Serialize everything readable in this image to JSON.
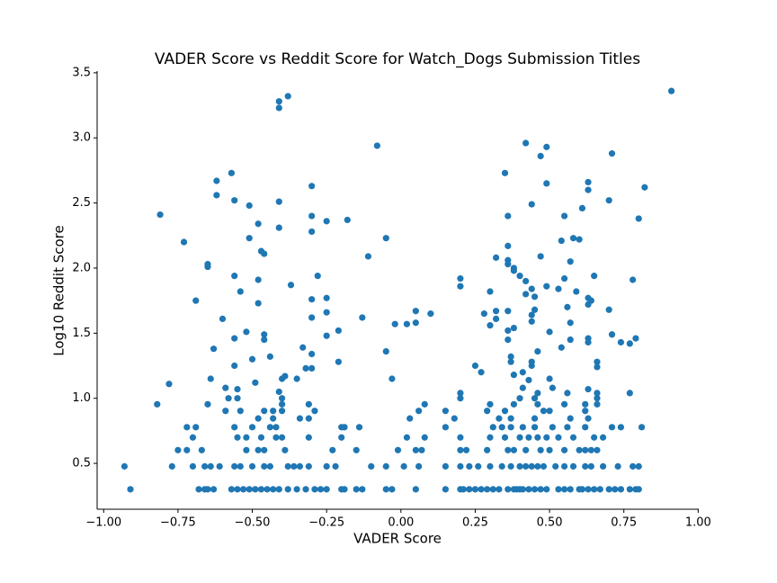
{
  "chart_data": {
    "type": "scatter",
    "title": "VADER Score vs Reddit Score for Watch_Dogs Submission Titles",
    "xlabel": "VADER Score",
    "ylabel": "Log10 Reddit Score",
    "color": "#1f77b4",
    "xlim": [
      -1.022,
      1.002
    ],
    "ylim": [
      0.148,
      3.513
    ],
    "xticks": [
      {
        "value": -1,
        "label": "−1.00"
      },
      {
        "value": -0.75,
        "label": "−0.75"
      },
      {
        "value": -0.5,
        "label": "−0.50"
      },
      {
        "value": -0.25,
        "label": "−0.25"
      },
      {
        "value": 0,
        "label": "0.00"
      },
      {
        "value": 0.25,
        "label": "0.25"
      },
      {
        "value": 0.5,
        "label": "0.50"
      },
      {
        "value": 0.75,
        "label": "0.75"
      },
      {
        "value": 1,
        "label": "1.00"
      }
    ],
    "yticks": [
      0.5,
      {
        "value": 1,
        "label": "1.0"
      },
      1.5,
      {
        "value": 2,
        "label": "2.0"
      },
      2.5,
      {
        "value": 3,
        "label": "3.0"
      },
      3.5
    ],
    "x": [
      -0.91,
      -0.68,
      -0.66,
      -0.65,
      -0.63,
      -0.57,
      -0.55,
      -0.53,
      -0.51,
      -0.49,
      -0.47,
      -0.45,
      -0.43,
      -0.41,
      -0.38,
      -0.35,
      -0.32,
      -0.29,
      -0.27,
      -0.25,
      -0.2,
      -0.19,
      -0.15,
      -0.13,
      -0.05,
      -0.03,
      0.05,
      0.15,
      0.2,
      0.21,
      0.23,
      0.25,
      0.27,
      0.29,
      0.31,
      0.33,
      0.36,
      0.38,
      0.39,
      0.4,
      0.41,
      0.43,
      0.45,
      0.47,
      0.49,
      0.53,
      0.55,
      0.57,
      0.6,
      0.61,
      0.63,
      0.65,
      0.67,
      0.7,
      0.72,
      0.74,
      0.77,
      0.79,
      0.8,
      -0.93,
      -0.77,
      -0.7,
      -0.66,
      -0.64,
      -0.61,
      -0.56,
      -0.54,
      -0.5,
      -0.46,
      -0.44,
      -0.38,
      -0.36,
      -0.34,
      -0.31,
      -0.25,
      -0.22,
      -0.1,
      -0.05,
      0.01,
      0.06,
      0.15,
      0.2,
      0.23,
      0.26,
      0.3,
      0.34,
      0.37,
      0.4,
      0.42,
      0.44,
      0.46,
      0.48,
      0.52,
      0.55,
      0.58,
      0.62,
      0.64,
      0.68,
      0.73,
      0.78,
      0.8,
      -0.75,
      -0.72,
      -0.67,
      -0.52,
      -0.48,
      -0.46,
      -0.39,
      -0.23,
      -0.15,
      -0.01,
      0.05,
      0.07,
      0.2,
      0.22,
      0.29,
      0.36,
      0.38,
      0.42,
      0.47,
      0.5,
      0.55,
      0.6,
      0.62,
      0.64,
      0.66,
      -0.7,
      -0.55,
      -0.52,
      -0.47,
      -0.42,
      -0.4,
      -0.31,
      -0.2,
      0.02,
      0.08,
      0.2,
      0.3,
      0.35,
      0.4,
      0.43,
      0.46,
      0.49,
      0.53,
      0.58,
      0.65,
      0.68,
      -0.72,
      -0.69,
      -0.56,
      -0.5,
      -0.44,
      -0.42,
      -0.2,
      -0.19,
      -0.14,
      0.15,
      0.31,
      0.34,
      0.37,
      0.41,
      0.45,
      0.51,
      0.56,
      0.62,
      0.71,
      0.74,
      0.81,
      -0.48,
      -0.43,
      -0.34,
      -0.31,
      0.03,
      0.18,
      0.33,
      0.37,
      0.45,
      0.57,
      0.63,
      -0.59,
      -0.54,
      -0.46,
      -0.43,
      -0.4,
      -0.29,
      0.06,
      0.15,
      0.29,
      0.35,
      0.48,
      0.5,
      0.62,
      -0.82,
      -0.65,
      -0.4,
      -0.31,
      0.08,
      0.3,
      0.38,
      0.46,
      0.55,
      0.62,
      0.66,
      -0.58,
      -0.55,
      -0.4,
      0.2,
      0.4,
      0.45,
      0.66,
      -0.81,
      -0.78,
      -0.73,
      -0.69,
      -0.65,
      -0.65,
      -0.63,
      -0.64,
      -0.62,
      -0.62,
      -0.6,
      -0.59,
      -0.57,
      -0.56,
      -0.56,
      -0.56,
      -0.56,
      -0.55,
      -0.54,
      -0.52,
      -0.51,
      -0.51,
      -0.5,
      -0.49,
      -0.48,
      -0.47,
      -0.48,
      -0.48,
      -0.46,
      -0.46,
      -0.46,
      -0.44,
      -0.41,
      -0.41,
      -0.41,
      -0.41,
      -0.41,
      -0.4,
      -0.39,
      -0.38,
      -0.37,
      -0.35,
      -0.33,
      -0.32,
      -0.3,
      -0.3,
      -0.3,
      -0.3,
      -0.3,
      -0.3,
      -0.3,
      -0.28,
      -0.25,
      -0.25,
      -0.25,
      -0.25,
      -0.21,
      -0.21,
      -0.18,
      -0.13,
      -0.11,
      -0.08,
      -0.05,
      -0.05,
      -0.03,
      -0.02,
      0.02,
      0.05,
      0.05,
      0.1,
      0.2,
      0.2,
      0.2,
      0.25,
      0.27,
      0.28,
      0.3,
      0.3,
      0.32,
      0.32,
      0.32,
      0.35,
      0.36,
      0.36,
      0.36,
      0.36,
      0.36,
      0.36,
      0.36,
      0.37,
      0.37,
      0.38,
      0.38,
      0.38,
      0.38,
      0.4,
      0.41,
      0.41,
      0.42,
      0.42,
      0.42,
      0.43,
      0.44,
      0.44,
      0.44,
      0.44,
      0.44,
      0.44,
      0.45,
      0.45,
      0.46,
      0.46,
      0.47,
      0.47,
      0.49,
      0.49,
      0.49,
      0.5,
      0.5,
      0.51,
      0.53,
      0.54,
      0.54,
      0.55,
      0.55,
      0.56,
      0.56,
      0.57,
      0.57,
      0.57,
      0.58,
      0.59,
      0.6,
      0.61,
      0.63,
      0.63,
      0.63,
      0.63,
      0.63,
      0.63,
      0.63,
      0.64,
      0.65,
      0.66,
      0.66,
      0.66,
      0.7,
      0.7,
      0.71,
      0.71,
      0.74,
      0.77,
      0.77,
      0.78,
      0.79,
      0.8,
      0.82,
      0.91
    ],
    "values": [
      0.301,
      0.301,
      0.301,
      0.301,
      0.301,
      0.301,
      0.301,
      0.301,
      0.301,
      0.301,
      0.301,
      0.301,
      0.301,
      0.301,
      0.301,
      0.301,
      0.301,
      0.301,
      0.301,
      0.301,
      0.301,
      0.301,
      0.301,
      0.301,
      0.301,
      0.301,
      0.301,
      0.301,
      0.301,
      0.301,
      0.301,
      0.301,
      0.301,
      0.301,
      0.301,
      0.301,
      0.301,
      0.301,
      0.301,
      0.301,
      0.301,
      0.301,
      0.301,
      0.301,
      0.301,
      0.301,
      0.301,
      0.301,
      0.301,
      0.301,
      0.301,
      0.301,
      0.301,
      0.301,
      0.301,
      0.301,
      0.301,
      0.301,
      0.301,
      0.477,
      0.477,
      0.477,
      0.477,
      0.477,
      0.477,
      0.477,
      0.477,
      0.477,
      0.477,
      0.477,
      0.477,
      0.477,
      0.477,
      0.477,
      0.477,
      0.477,
      0.477,
      0.477,
      0.477,
      0.477,
      0.477,
      0.477,
      0.477,
      0.477,
      0.477,
      0.477,
      0.477,
      0.477,
      0.477,
      0.477,
      0.477,
      0.477,
      0.477,
      0.477,
      0.477,
      0.477,
      0.477,
      0.477,
      0.477,
      0.477,
      0.477,
      0.602,
      0.602,
      0.602,
      0.602,
      0.602,
      0.602,
      0.602,
      0.602,
      0.602,
      0.602,
      0.602,
      0.602,
      0.602,
      0.602,
      0.602,
      0.602,
      0.602,
      0.602,
      0.602,
      0.602,
      0.602,
      0.602,
      0.602,
      0.602,
      0.602,
      0.699,
      0.699,
      0.699,
      0.699,
      0.699,
      0.699,
      0.699,
      0.699,
      0.699,
      0.699,
      0.699,
      0.699,
      0.699,
      0.699,
      0.699,
      0.699,
      0.699,
      0.699,
      0.699,
      0.699,
      0.699,
      0.778,
      0.778,
      0.778,
      0.778,
      0.778,
      0.778,
      0.778,
      0.778,
      0.778,
      0.778,
      0.778,
      0.778,
      0.778,
      0.778,
      0.778,
      0.778,
      0.778,
      0.778,
      0.778,
      0.778,
      0.778,
      0.845,
      0.845,
      0.845,
      0.845,
      0.845,
      0.845,
      0.845,
      0.845,
      0.845,
      0.845,
      0.845,
      0.903,
      0.903,
      0.903,
      0.903,
      0.903,
      0.903,
      0.903,
      0.903,
      0.903,
      0.903,
      0.903,
      0.903,
      0.903,
      0.954,
      0.954,
      0.954,
      0.954,
      0.954,
      0.954,
      0.954,
      0.954,
      0.954,
      0.954,
      0.954,
      1.0,
      1.0,
      1.0,
      1.0,
      1.0,
      1.0,
      1.0,
      2.41,
      1.11,
      2.2,
      1.75,
      2.01,
      2.03,
      1.38,
      1.15,
      2.67,
      2.56,
      1.61,
      1.08,
      2.73,
      2.52,
      1.94,
      1.46,
      1.25,
      1.07,
      1.82,
      1.51,
      2.48,
      2.23,
      1.3,
      1.12,
      2.34,
      2.13,
      1.91,
      1.73,
      2.11,
      1.49,
      1.45,
      1.32,
      3.28,
      3.23,
      2.51,
      2.31,
      1.05,
      1.15,
      1.17,
      3.32,
      1.87,
      1.15,
      1.39,
      1.23,
      2.63,
      2.4,
      2.28,
      1.76,
      1.62,
      1.34,
      1.23,
      1.94,
      2.36,
      1.77,
      1.66,
      1.48,
      1.52,
      1.28,
      2.37,
      1.62,
      2.09,
      2.94,
      2.23,
      1.36,
      1.15,
      1.57,
      1.57,
      1.67,
      1.58,
      1.65,
      1.92,
      1.86,
      1.04,
      1.25,
      1.2,
      1.65,
      1.82,
      1.56,
      2.08,
      1.67,
      1.61,
      2.73,
      2.4,
      2.17,
      2.06,
      2.03,
      1.67,
      1.52,
      1.45,
      1.32,
      1.28,
      2.0,
      1.98,
      1.54,
      1.18,
      1.94,
      1.2,
      1.08,
      2.96,
      1.9,
      1.8,
      1.14,
      2.49,
      1.84,
      1.64,
      1.59,
      1.28,
      1.25,
      1.68,
      1.78,
      1.36,
      1.04,
      2.86,
      2.09,
      2.93,
      2.65,
      1.86,
      1.15,
      1.51,
      1.08,
      1.84,
      2.21,
      1.39,
      2.4,
      1.92,
      1.7,
      1.04,
      2.05,
      1.58,
      1.45,
      2.23,
      1.82,
      2.22,
      2.46,
      2.66,
      2.6,
      1.77,
      1.72,
      1.46,
      1.43,
      1.07,
      1.75,
      1.94,
      1.28,
      1.04,
      1.24,
      2.52,
      1.68,
      2.88,
      1.49,
      1.43,
      1.42,
      1.04,
      1.91,
      1.46,
      2.38,
      2.62,
      3.36
    ]
  }
}
